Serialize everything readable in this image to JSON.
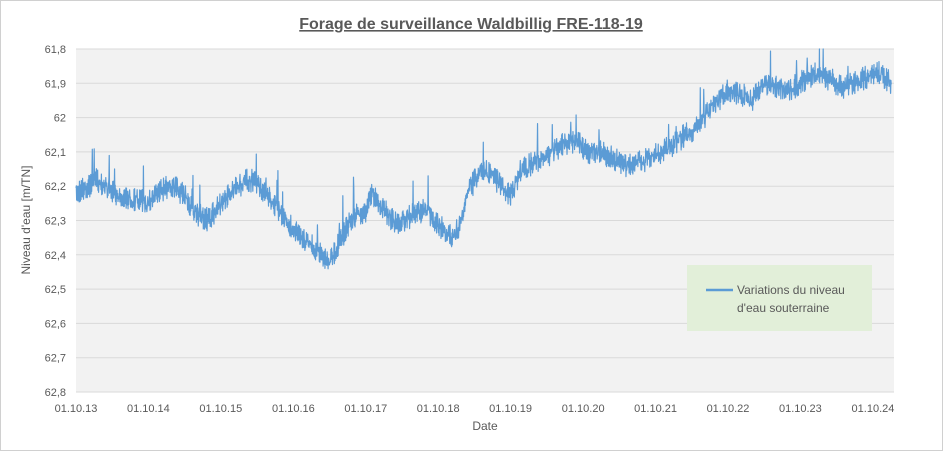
{
  "chart_data": {
    "type": "line",
    "title": "Forage de surveillance Waldbillig   FRE-118-19",
    "xlabel": "Date",
    "ylabel": "Niveau d'eau [m/TN]",
    "x_tick_labels": [
      "01.10.13",
      "01.10.14",
      "01.10.15",
      "01.10.16",
      "01.10.17",
      "01.10.18",
      "01.10.19",
      "01.10.20",
      "01.10.21",
      "01.10.22",
      "01.10.23",
      "01.10.24"
    ],
    "y_tick_labels": [
      "61,8",
      "61,9",
      "62",
      "62,1",
      "62,2",
      "62,3",
      "62,4",
      "62,5",
      "62,6",
      "62,7",
      "62,8"
    ],
    "ylim": [
      61.8,
      62.8
    ],
    "y_inverted": true,
    "xlim": [
      "2013-10-01",
      "2025-01-15"
    ],
    "grid": "horizontal",
    "legend_position": "bottom-right",
    "colors": {
      "series": "#5b9bd5",
      "plot_bg": "#f2f2f2",
      "legend_bg": "#e2efd9",
      "grid": "#ffffff"
    },
    "series": [
      {
        "name": "Variations du niveau d'eau souterraine",
        "x": [
          "2013-10-01",
          "2013-12-01",
          "2014-01-15",
          "2014-03-01",
          "2014-04-15",
          "2014-06-01",
          "2014-08-01",
          "2014-10-01",
          "2014-11-15",
          "2015-01-15",
          "2015-03-01",
          "2015-04-15",
          "2015-06-01",
          "2015-08-01",
          "2015-10-01",
          "2015-11-15",
          "2016-01-01",
          "2016-02-15",
          "2016-04-01",
          "2016-06-01",
          "2016-08-01",
          "2016-10-01",
          "2016-12-01",
          "2017-02-01",
          "2017-04-01",
          "2017-06-01",
          "2017-07-15",
          "2017-09-01",
          "2017-10-01",
          "2017-11-01",
          "2018-01-01",
          "2018-03-01",
          "2018-04-15",
          "2018-06-01",
          "2018-08-01",
          "2018-09-15",
          "2018-11-01",
          "2019-01-01",
          "2019-03-01",
          "2019-05-01",
          "2019-07-01",
          "2019-08-15",
          "2019-10-01",
          "2019-11-15",
          "2020-01-01",
          "2020-03-01",
          "2020-05-01",
          "2020-06-15",
          "2020-08-01",
          "2020-09-15",
          "2020-11-01",
          "2021-01-01",
          "2021-03-01",
          "2021-05-01",
          "2021-07-01",
          "2021-09-01",
          "2021-11-01",
          "2022-01-01",
          "2022-03-01",
          "2022-04-15",
          "2022-06-01",
          "2022-08-01",
          "2022-10-01",
          "2022-12-01",
          "2023-02-01",
          "2023-04-01",
          "2023-06-01",
          "2023-08-01",
          "2023-10-01",
          "2023-11-15",
          "2024-01-01",
          "2024-03-01",
          "2024-05-01",
          "2024-07-01",
          "2024-09-01",
          "2024-11-01",
          "2025-01-01"
        ],
        "y": [
          62.22,
          62.2,
          62.18,
          62.2,
          62.22,
          62.23,
          62.24,
          62.25,
          62.22,
          62.2,
          62.21,
          62.24,
          62.28,
          62.3,
          62.25,
          62.22,
          62.2,
          62.18,
          62.19,
          62.23,
          62.28,
          62.33,
          62.36,
          62.39,
          62.42,
          62.35,
          62.3,
          62.28,
          62.27,
          62.22,
          62.27,
          62.31,
          62.3,
          62.28,
          62.27,
          62.3,
          62.33,
          62.35,
          62.22,
          62.15,
          62.17,
          62.2,
          62.23,
          62.16,
          62.14,
          62.12,
          62.1,
          62.08,
          62.07,
          62.08,
          62.1,
          62.1,
          62.12,
          62.14,
          62.13,
          62.12,
          62.1,
          62.08,
          62.05,
          62.04,
          62.0,
          61.96,
          61.92,
          61.93,
          61.95,
          61.9,
          61.91,
          61.92,
          61.9,
          61.88,
          61.87,
          61.89,
          61.91,
          61.9,
          61.88,
          61.87,
          61.9
        ]
      }
    ]
  }
}
